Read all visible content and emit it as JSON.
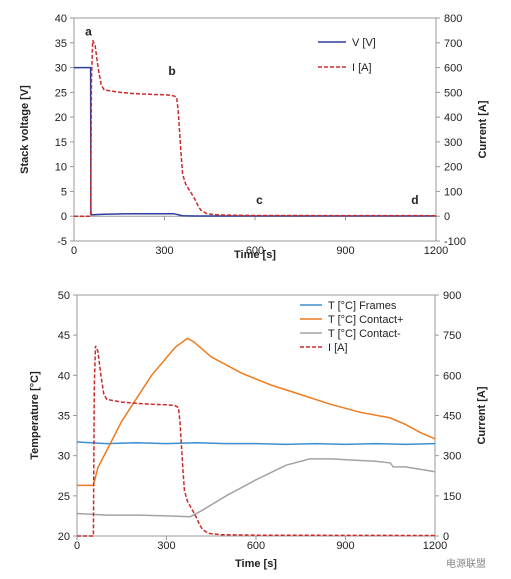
{
  "watermark": "电源联盟",
  "chart_data": [
    {
      "type": "line",
      "title": "",
      "xlabel": "Time [s]",
      "ylabel": "Stack voltage [V]",
      "y2label": "Current [A]",
      "xlim": [
        0,
        1200
      ],
      "ylim": [
        -5,
        40
      ],
      "y2lim": [
        -100,
        800
      ],
      "xticks": [
        0,
        300,
        600,
        900,
        1200
      ],
      "yticks": [
        -5,
        0,
        5,
        10,
        15,
        20,
        25,
        30,
        35,
        40
      ],
      "y2ticks": [
        -100,
        0,
        100,
        200,
        300,
        400,
        500,
        600,
        700,
        800
      ],
      "legend_position": "top-right",
      "series": [
        {
          "name": "V [V]",
          "axis": "left",
          "color": "#2a3f9e",
          "dash": "solid",
          "x": [
            0,
            55,
            56,
            57,
            60,
            100,
            200,
            330,
            345,
            360,
            400,
            1200
          ],
          "y": [
            30,
            30,
            1.2,
            0.3,
            0.3,
            0.4,
            0.5,
            0.5,
            0.3,
            0.1,
            0.05,
            0.05
          ]
        },
        {
          "name": "I [A]",
          "axis": "right",
          "color": "#cc2a2a",
          "dash": "dashed",
          "x": [
            0,
            55,
            58,
            62,
            70,
            80,
            90,
            100,
            150,
            200,
            250,
            300,
            320,
            330,
            340,
            345,
            355,
            360,
            370,
            380,
            390,
            400,
            410,
            420,
            440,
            480,
            600,
            1200
          ],
          "y": [
            0,
            0,
            560,
            710,
            690,
            600,
            530,
            510,
            500,
            495,
            492,
            490,
            488,
            486,
            480,
            430,
            250,
            170,
            130,
            110,
            90,
            70,
            45,
            25,
            10,
            5,
            3,
            2
          ]
        }
      ],
      "annotations": [
        {
          "text": "a",
          "x": 48,
          "y": 36.5
        },
        {
          "text": "b",
          "x": 325,
          "y": 28.5
        },
        {
          "text": "c",
          "x": 615,
          "y": 2.5
        },
        {
          "text": "d",
          "x": 1130,
          "y": 2.5
        }
      ]
    },
    {
      "type": "line",
      "title": "",
      "xlabel": "Time [s]",
      "ylabel": "Temperature [°C]",
      "y2label": "Current [A]",
      "xlim": [
        0,
        1200
      ],
      "ylim": [
        20,
        50
      ],
      "y2lim": [
        0,
        900
      ],
      "xticks": [
        0,
        300,
        600,
        900,
        1200
      ],
      "yticks": [
        20,
        25,
        30,
        35,
        40,
        45,
        50
      ],
      "y2ticks": [
        0,
        150,
        300,
        450,
        600,
        750,
        900
      ],
      "legend_position": "top-right",
      "series": [
        {
          "name": "T [°C] Frames",
          "axis": "left",
          "color": "#3b8fd0",
          "dash": "solid",
          "x": [
            0,
            100,
            200,
            300,
            400,
            500,
            600,
            700,
            800,
            900,
            1000,
            1100,
            1200
          ],
          "y": [
            31.7,
            31.5,
            31.6,
            31.5,
            31.6,
            31.5,
            31.5,
            31.4,
            31.5,
            31.4,
            31.5,
            31.4,
            31.5
          ]
        },
        {
          "name": "T [°C] Contact+",
          "axis": "left",
          "color": "#ee7a1e",
          "dash": "solid",
          "x": [
            0,
            55,
            70,
            150,
            250,
            330,
            370,
            390,
            450,
            550,
            650,
            750,
            850,
            950,
            1050,
            1100,
            1150,
            1200
          ],
          "y": [
            26.3,
            26.3,
            28.5,
            34.3,
            40.0,
            43.5,
            44.6,
            44.2,
            42.3,
            40.3,
            38.8,
            37.6,
            36.4,
            35.4,
            34.7,
            33.9,
            32.9,
            32.1
          ]
        },
        {
          "name": "T [°C] Contact-",
          "axis": "left",
          "color": "#a3a3a3",
          "dash": "solid",
          "x": [
            0,
            100,
            200,
            300,
            380,
            420,
            500,
            600,
            700,
            780,
            850,
            950,
            1000,
            1050,
            1060,
            1100,
            1150,
            1200
          ],
          "y": [
            22.8,
            22.6,
            22.6,
            22.5,
            22.4,
            23.2,
            25.0,
            27.0,
            28.8,
            29.6,
            29.6,
            29.4,
            29.3,
            29.1,
            28.6,
            28.6,
            28.3,
            28.0
          ]
        },
        {
          "name": "I [A]",
          "axis": "right",
          "color": "#cc2a2a",
          "dash": "dashed",
          "x": [
            0,
            55,
            58,
            62,
            70,
            80,
            90,
            100,
            150,
            200,
            250,
            300,
            320,
            330,
            340,
            345,
            355,
            360,
            370,
            380,
            390,
            400,
            410,
            420,
            440,
            480,
            600,
            1200
          ],
          "y": [
            0,
            0,
            560,
            710,
            690,
            600,
            530,
            510,
            500,
            495,
            492,
            490,
            488,
            486,
            480,
            430,
            250,
            170,
            130,
            110,
            90,
            70,
            45,
            25,
            10,
            5,
            3,
            2
          ]
        }
      ],
      "annotations": []
    }
  ]
}
